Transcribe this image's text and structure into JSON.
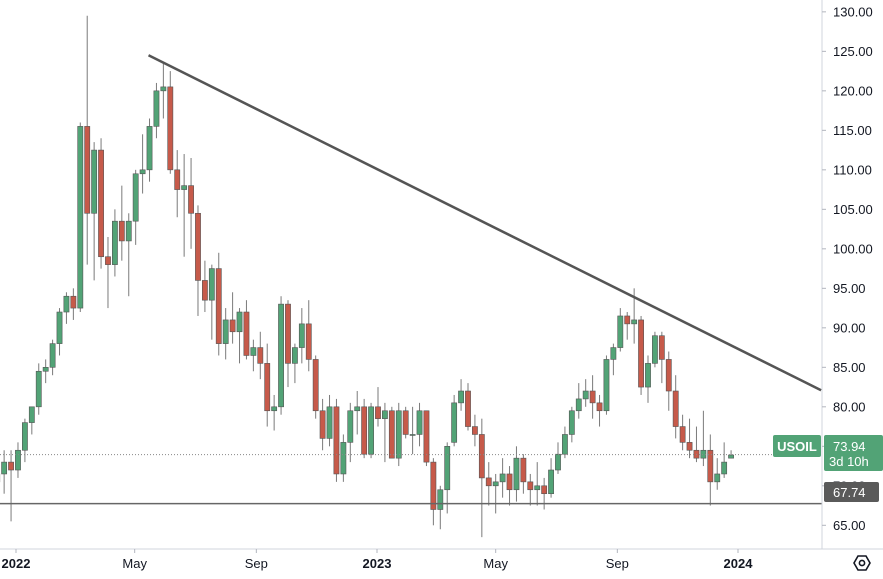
{
  "chart_data": {
    "type": "candlestick",
    "symbol": "USOIL",
    "last_price": "73.94",
    "countdown": "3d 10h",
    "support_level": 67.74,
    "support_label": "67.74",
    "ylim": [
      62.0,
      131.5
    ],
    "y_ticks": [
      "130.00",
      "125.00",
      "120.00",
      "115.00",
      "110.00",
      "105.00",
      "100.00",
      "95.00",
      "90.00",
      "85.00",
      "80.00",
      "75.00",
      "70.00",
      "65.00"
    ],
    "x_ticks": [
      {
        "label": "2022",
        "bold": true,
        "date": "2022-01-01"
      },
      {
        "label": "May",
        "bold": false,
        "date": "2022-05-01"
      },
      {
        "label": "Sep",
        "bold": false,
        "date": "2022-09-01"
      },
      {
        "label": "2023",
        "bold": true,
        "date": "2023-01-01"
      },
      {
        "label": "May",
        "bold": false,
        "date": "2023-05-01"
      },
      {
        "label": "Sep",
        "bold": false,
        "date": "2023-09-01"
      },
      {
        "label": "2024",
        "bold": true,
        "date": "2024-01-01"
      }
    ],
    "trendline": {
      "start_date": "2022-05-15",
      "start_value": 124.5,
      "end_date": "2024-03-25",
      "end_value": 82.1
    },
    "weeks_start": "2021-12-13",
    "candles": [
      [
        70.5,
        72.0,
        62.0,
        71.5
      ],
      [
        71.5,
        74.5,
        69.0,
        73.0
      ],
      [
        73.0,
        74.5,
        65.5,
        72.0
      ],
      [
        72.0,
        75.5,
        71.0,
        74.5
      ],
      [
        74.5,
        78.5,
        73.0,
        78.0
      ],
      [
        78.0,
        80.0,
        76.5,
        80.0
      ],
      [
        80.0,
        85.5,
        79.0,
        84.5
      ],
      [
        84.5,
        86.0,
        83.0,
        85.0
      ],
      [
        85.0,
        88.5,
        84.0,
        88.0
      ],
      [
        88.0,
        92.5,
        86.5,
        92.0
      ],
      [
        92.0,
        94.5,
        90.5,
        94.0
      ],
      [
        94.0,
        95.0,
        91.0,
        92.5
      ],
      [
        92.5,
        116.0,
        92.0,
        115.5
      ],
      [
        115.5,
        129.5,
        98.0,
        104.5
      ],
      [
        104.5,
        113.5,
        96.0,
        112.5
      ],
      [
        112.5,
        114.0,
        97.5,
        99.0
      ],
      [
        99.0,
        101.5,
        92.5,
        98.0
      ],
      [
        98.0,
        105.0,
        96.5,
        103.5
      ],
      [
        103.5,
        108.0,
        98.5,
        101.0
      ],
      [
        101.0,
        104.5,
        94.0,
        103.5
      ],
      [
        103.5,
        110.0,
        100.5,
        109.5
      ],
      [
        109.5,
        114.5,
        107.0,
        110.0
      ],
      [
        110.0,
        116.5,
        108.5,
        115.5
      ],
      [
        115.5,
        121.0,
        114.0,
        120.0
      ],
      [
        120.0,
        123.5,
        116.5,
        120.5
      ],
      [
        120.5,
        122.5,
        109.5,
        110.0
      ],
      [
        110.0,
        112.5,
        104.0,
        107.5
      ],
      [
        107.5,
        112.0,
        99.0,
        108.0
      ],
      [
        108.0,
        111.5,
        100.0,
        104.5
      ],
      [
        104.5,
        105.5,
        91.5,
        96.0
      ],
      [
        96.0,
        98.5,
        92.0,
        93.5
      ],
      [
        93.5,
        98.0,
        88.5,
        97.5
      ],
      [
        97.5,
        99.5,
        86.5,
        88.0
      ],
      [
        88.0,
        92.5,
        86.0,
        91.0
      ],
      [
        91.0,
        94.5,
        88.0,
        89.5
      ],
      [
        89.5,
        92.5,
        85.5,
        92.0
      ],
      [
        92.0,
        93.5,
        86.0,
        86.5
      ],
      [
        86.5,
        88.5,
        84.5,
        87.5
      ],
      [
        87.5,
        89.5,
        83.5,
        85.5
      ],
      [
        85.5,
        88.0,
        77.5,
        79.5
      ],
      [
        79.5,
        81.5,
        77.0,
        80.0
      ],
      [
        80.0,
        94.0,
        79.0,
        93.0
      ],
      [
        93.0,
        93.5,
        82.5,
        85.5
      ],
      [
        85.5,
        88.0,
        83.0,
        87.5
      ],
      [
        87.5,
        92.5,
        85.5,
        90.5
      ],
      [
        90.5,
        93.5,
        84.5,
        86.0
      ],
      [
        86.0,
        86.5,
        78.5,
        79.5
      ],
      [
        79.5,
        81.0,
        74.5,
        76.0
      ],
      [
        76.0,
        81.5,
        75.0,
        80.0
      ],
      [
        80.0,
        81.0,
        70.5,
        71.5
      ],
      [
        71.5,
        76.5,
        70.5,
        75.5
      ],
      [
        75.5,
        80.5,
        73.0,
        79.5
      ],
      [
        79.5,
        82.0,
        76.5,
        80.0
      ],
      [
        80.0,
        81.0,
        73.5,
        74.0
      ],
      [
        74.0,
        80.5,
        73.5,
        80.0
      ],
      [
        80.0,
        82.5,
        77.5,
        78.5
      ],
      [
        78.5,
        80.5,
        73.0,
        79.5
      ],
      [
        79.5,
        80.0,
        73.5,
        73.5
      ],
      [
        73.5,
        80.5,
        72.5,
        79.5
      ],
      [
        79.5,
        80.0,
        76.0,
        76.5
      ],
      [
        76.5,
        80.0,
        74.0,
        76.5
      ],
      [
        76.5,
        80.5,
        75.0,
        79.5
      ],
      [
        79.5,
        79.5,
        72.5,
        73.0
      ],
      [
        73.0,
        73.5,
        65.0,
        67.0
      ],
      [
        67.0,
        70.0,
        64.5,
        69.5
      ],
      [
        69.5,
        75.5,
        66.5,
        75.0
      ],
      [
        75.5,
        81.5,
        75.0,
        80.5
      ],
      [
        80.5,
        83.5,
        79.5,
        82.0
      ],
      [
        82.0,
        83.0,
        77.0,
        77.5
      ],
      [
        77.5,
        79.0,
        75.0,
        76.5
      ],
      [
        76.5,
        78.5,
        63.5,
        71.0
      ],
      [
        71.0,
        73.0,
        67.5,
        70.0
      ],
      [
        70.0,
        71.5,
        66.5,
        70.5
      ],
      [
        70.5,
        73.5,
        68.5,
        71.5
      ],
      [
        71.5,
        72.5,
        67.5,
        69.5
      ],
      [
        69.5,
        75.0,
        68.0,
        73.5
      ],
      [
        73.5,
        74.0,
        69.0,
        70.5
      ],
      [
        70.5,
        71.5,
        67.5,
        69.5
      ],
      [
        69.5,
        73.0,
        67.5,
        70.0
      ],
      [
        70.0,
        71.0,
        67.0,
        69.0
      ],
      [
        69.0,
        73.5,
        68.5,
        72.0
      ],
      [
        72.0,
        75.5,
        71.5,
        74.0
      ],
      [
        74.0,
        77.5,
        73.5,
        76.5
      ],
      [
        76.5,
        80.0,
        75.5,
        79.5
      ],
      [
        79.5,
        83.0,
        78.5,
        81.0
      ],
      [
        81.0,
        83.5,
        80.0,
        82.0
      ],
      [
        82.0,
        84.0,
        78.5,
        80.5
      ],
      [
        80.5,
        81.5,
        77.5,
        79.5
      ],
      [
        79.5,
        86.5,
        79.0,
        86.0
      ],
      [
        86.0,
        88.0,
        84.0,
        87.5
      ],
      [
        87.5,
        92.5,
        87.0,
        91.5
      ],
      [
        91.5,
        92.0,
        88.5,
        90.5
      ],
      [
        90.5,
        95.0,
        88.0,
        91.0
      ],
      [
        91.0,
        91.5,
        81.5,
        82.5
      ],
      [
        82.5,
        86.5,
        80.5,
        85.5
      ],
      [
        85.5,
        89.5,
        85.0,
        89.0
      ],
      [
        89.0,
        89.5,
        83.0,
        86.0
      ],
      [
        86.0,
        87.0,
        79.5,
        82.0
      ],
      [
        82.0,
        84.0,
        76.0,
        77.5
      ],
      [
        77.5,
        79.0,
        74.5,
        75.5
      ],
      [
        75.5,
        78.5,
        73.5,
        74.5
      ],
      [
        74.5,
        77.5,
        73.0,
        73.5
      ],
      [
        73.5,
        79.5,
        72.5,
        74.5
      ],
      [
        74.5,
        76.5,
        67.5,
        70.5
      ],
      [
        70.5,
        73.5,
        69.5,
        71.5
      ],
      [
        71.5,
        75.5,
        71.0,
        73.0
      ],
      [
        73.5,
        74.5,
        73.5,
        73.9
      ]
    ]
  },
  "colors": {
    "up": "#52a376",
    "down": "#c65a4a",
    "trendline": "#555555",
    "support": "#666666",
    "label_green": "#52a376",
    "label_gray": "#5a5a5a"
  },
  "settings_icon": "gear-hexagon-icon"
}
